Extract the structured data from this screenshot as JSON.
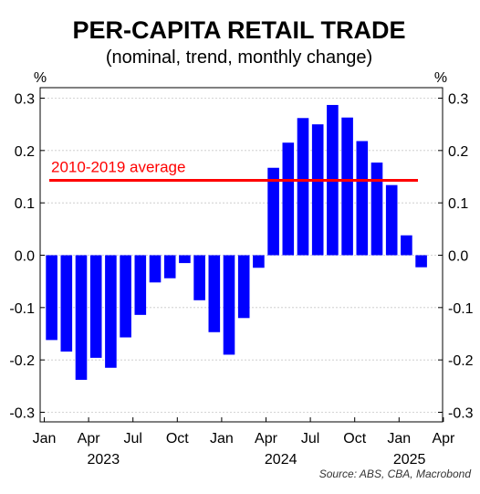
{
  "chart_data": {
    "type": "bar",
    "title": "PER-CAPITA RETAIL TRADE",
    "subtitle": "(nominal, trend, monthly change)",
    "y_unit_left": "%",
    "y_unit_right": "%",
    "ylim": [
      -0.3,
      0.3
    ],
    "y_ticks": [
      0.3,
      0.2,
      0.1,
      0.0,
      -0.1,
      -0.2,
      -0.3
    ],
    "y_tick_labels": [
      "0.3",
      "0.2",
      "0.1",
      "0.0",
      "-0.1",
      "-0.2",
      "-0.3"
    ],
    "grid": true,
    "categories": [
      "2023-01",
      "2023-02",
      "2023-03",
      "2023-04",
      "2023-05",
      "2023-06",
      "2023-07",
      "2023-08",
      "2023-09",
      "2023-10",
      "2023-11",
      "2023-12",
      "2024-01",
      "2024-02",
      "2024-03",
      "2024-04",
      "2024-05",
      "2024-06",
      "2024-07",
      "2024-08",
      "2024-09",
      "2024-10",
      "2024-11",
      "2024-12",
      "2025-01",
      "2025-02"
    ],
    "values": [
      -0.162,
      -0.184,
      -0.238,
      -0.196,
      -0.215,
      -0.157,
      -0.114,
      -0.052,
      -0.044,
      -0.015,
      -0.086,
      -0.147,
      -0.19,
      -0.12,
      -0.024,
      0.167,
      0.215,
      0.262,
      0.25,
      0.287,
      0.263,
      0.218,
      0.177,
      0.134,
      0.038,
      -0.023
    ],
    "bar_color": "#0000ff",
    "x_ticks": [
      {
        "label": "Jan",
        "index": 0
      },
      {
        "label": "Apr",
        "index": 3
      },
      {
        "label": "Jul",
        "index": 6
      },
      {
        "label": "Oct",
        "index": 9
      },
      {
        "label": "Jan",
        "index": 12
      },
      {
        "label": "Apr",
        "index": 15
      },
      {
        "label": "Jul",
        "index": 18
      },
      {
        "label": "Oct",
        "index": 21
      },
      {
        "label": "Jan",
        "index": 24
      },
      {
        "label": "Apr",
        "index": 27
      }
    ],
    "year_labels": [
      {
        "label": "2023",
        "index": 4
      },
      {
        "label": "2024",
        "index": 16
      },
      {
        "label": "2025",
        "index": 24.7
      }
    ],
    "reference_line": {
      "label": "2010-2019 average",
      "value": 0.143,
      "color": "#ff0000"
    },
    "source": "Source: ABS, CBA, Macrobond"
  }
}
